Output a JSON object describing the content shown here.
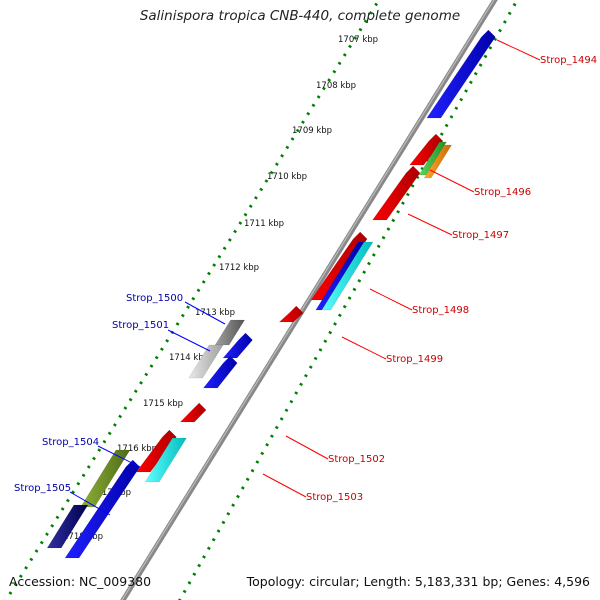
{
  "title": "Salinispora tropica CNB-440, complete genome",
  "accession": "Accession: NC_009380",
  "summary": "Topology: circular; Length: 5,183,331 bp; Genes: 4,596",
  "kbp_labels": [
    "1707 kbp",
    "1708 kbp",
    "1709 kbp",
    "1710 kbp",
    "1711 kbp",
    "1712 kbp",
    "1713 kbp",
    "1714 kbp",
    "1715 kbp",
    "1716 kbp",
    "1717 kbp",
    "1718 kbp"
  ],
  "gene_labels_right": [
    "Strop_1494",
    "Strop_1496",
    "Strop_1497",
    "Strop_1498",
    "Strop_1499",
    "Strop_1502",
    "Strop_1503"
  ],
  "gene_labels_left": [
    "Strop_1500",
    "Strop_1501",
    "Strop_1504",
    "Strop_1505"
  ],
  "colors": {
    "red": "#ff0000",
    "blue": "#0000ff",
    "orange": "#ff8c00",
    "green": "#3cb43c",
    "cyan": "#00e5e5",
    "olive": "#6b8e23",
    "gray": "#888888",
    "navy": "#000080",
    "backbone": "#888888",
    "dots": "#008000",
    "label_red": "#cc0000",
    "label_blue": "#0000aa"
  }
}
